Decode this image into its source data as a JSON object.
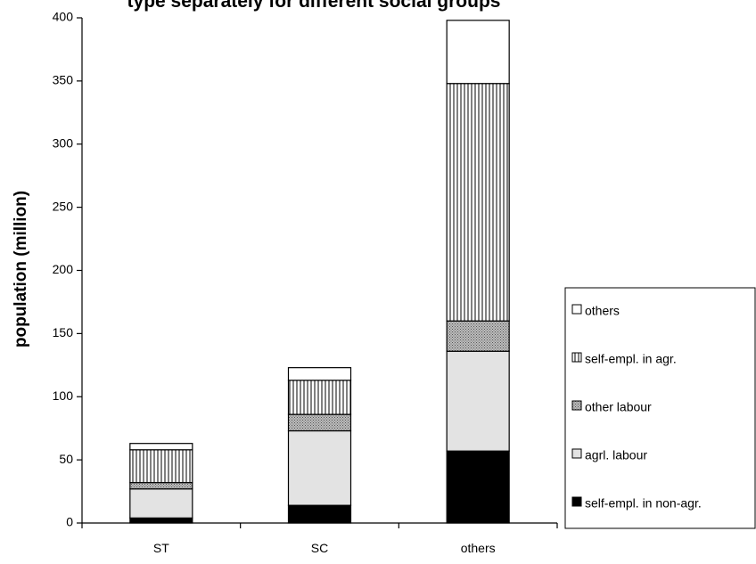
{
  "chart_data": {
    "type": "bar",
    "stacked": true,
    "title": "type separately for different social groups",
    "xlabel": "",
    "ylabel": "population (million)",
    "ylim": [
      0,
      400
    ],
    "yticks": [
      0,
      50,
      100,
      150,
      200,
      250,
      300,
      350,
      400
    ],
    "grid": false,
    "legend_position": "right",
    "categories": [
      "ST",
      "SC",
      "others"
    ],
    "series": [
      {
        "name": "self-empl. in non-agr.",
        "values": [
          4,
          14,
          57
        ],
        "fill": "#000000",
        "pattern": "solid"
      },
      {
        "name": "agrl. labour",
        "values": [
          23,
          59,
          79
        ],
        "fill": "#e3e3e3",
        "pattern": "solid"
      },
      {
        "name": "other labour",
        "values": [
          5,
          13,
          24
        ],
        "fill": "#bdbdbd",
        "pattern": "crosshatch"
      },
      {
        "name": "self-empl. in agr.",
        "values": [
          26,
          27,
          188
        ],
        "fill": "#ffffff",
        "pattern": "vertical-lines"
      },
      {
        "name": "others",
        "values": [
          5,
          10,
          50
        ],
        "fill": "#ffffff",
        "pattern": "solid"
      }
    ]
  }
}
